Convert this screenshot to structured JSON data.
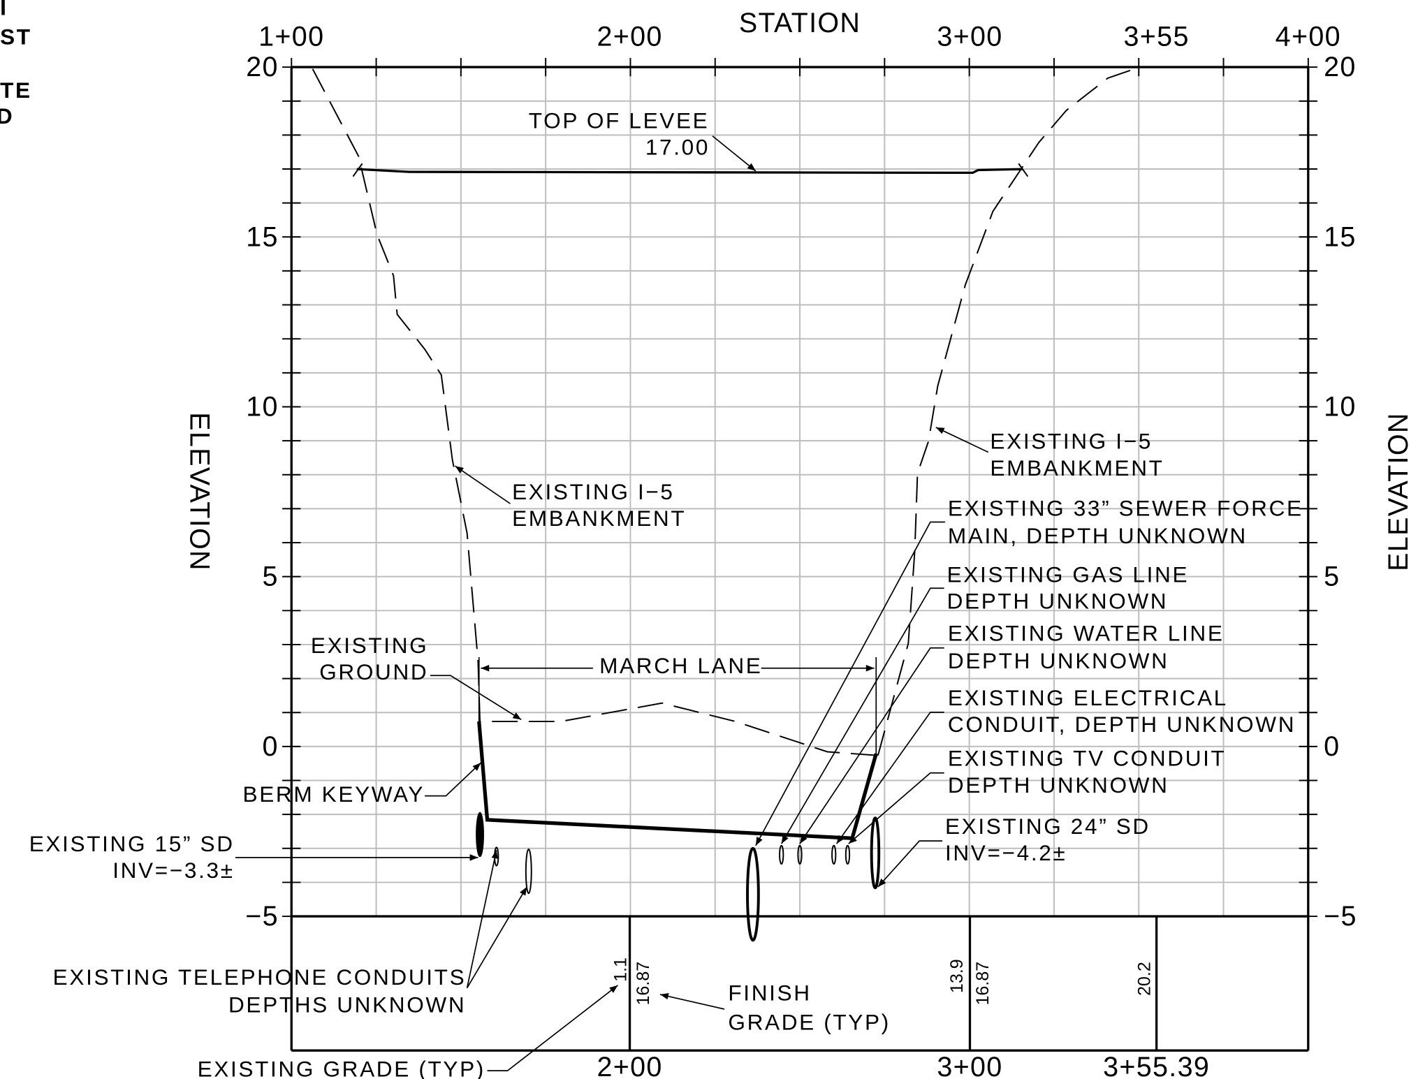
{
  "fragments": [
    "I",
    "ST",
    "TE",
    "D"
  ],
  "axes": {
    "top_title": "STATION",
    "left_label": "ELEVATION",
    "right_label": "ELEVATION",
    "top_ticks": [
      "1+00",
      "2+00",
      "3+00",
      "3+55",
      "4+00"
    ],
    "left_ticks": [
      "20",
      "15",
      "10",
      "5",
      "0",
      "−5"
    ],
    "right_ticks": [
      "20",
      "15",
      "10",
      "5",
      "0",
      "−5"
    ],
    "bottom_ticks": [
      "2+00",
      "3+00",
      "3+55.39"
    ]
  },
  "grade_labels": [
    "1.1",
    "16.87",
    "13.9",
    "16.87",
    "20.2"
  ],
  "annotations": [
    {
      "lines": [
        "TOP OF LEVEE",
        "17.00"
      ]
    },
    {
      "lines": [
        "EXISTING I−5",
        "EMBANKMENT"
      ]
    },
    {
      "lines": [
        "EXISTING I−5",
        "EMBANKMENT"
      ]
    },
    {
      "lines": [
        "EXISTING 33” SEWER FORCE",
        "MAIN, DEPTH UNKNOWN"
      ]
    },
    {
      "lines": [
        "EXISTING GAS LINE",
        "DEPTH UNKNOWN"
      ]
    },
    {
      "lines": [
        "EXISTING WATER LINE",
        "DEPTH UNKNOWN"
      ]
    },
    {
      "lines": [
        "EXISTING ELECTRICAL",
        "CONDUIT, DEPTH UNKNOWN"
      ]
    },
    {
      "lines": [
        "EXISTING TV CONDUIT",
        "DEPTH UNKNOWN"
      ]
    },
    {
      "lines": [
        "EXISTING 24” SD",
        "INV=−4.2±"
      ]
    },
    {
      "lines": [
        "EXISTING",
        "GROUND"
      ]
    },
    {
      "lines": [
        "MARCH LANE"
      ]
    },
    {
      "lines": [
        "BERM KEYWAY"
      ]
    },
    {
      "lines": [
        "EXISTING 15” SD",
        "INV=−3.3±"
      ]
    },
    {
      "lines": [
        "EXISTING TELEPHONE CONDUITS",
        "DEPTHS UNKNOWN"
      ]
    },
    {
      "lines": [
        "FINISH",
        "GRADE (TYP)"
      ]
    },
    {
      "lines": [
        "EXISTING GRADE (TYP)"
      ]
    }
  ]
}
